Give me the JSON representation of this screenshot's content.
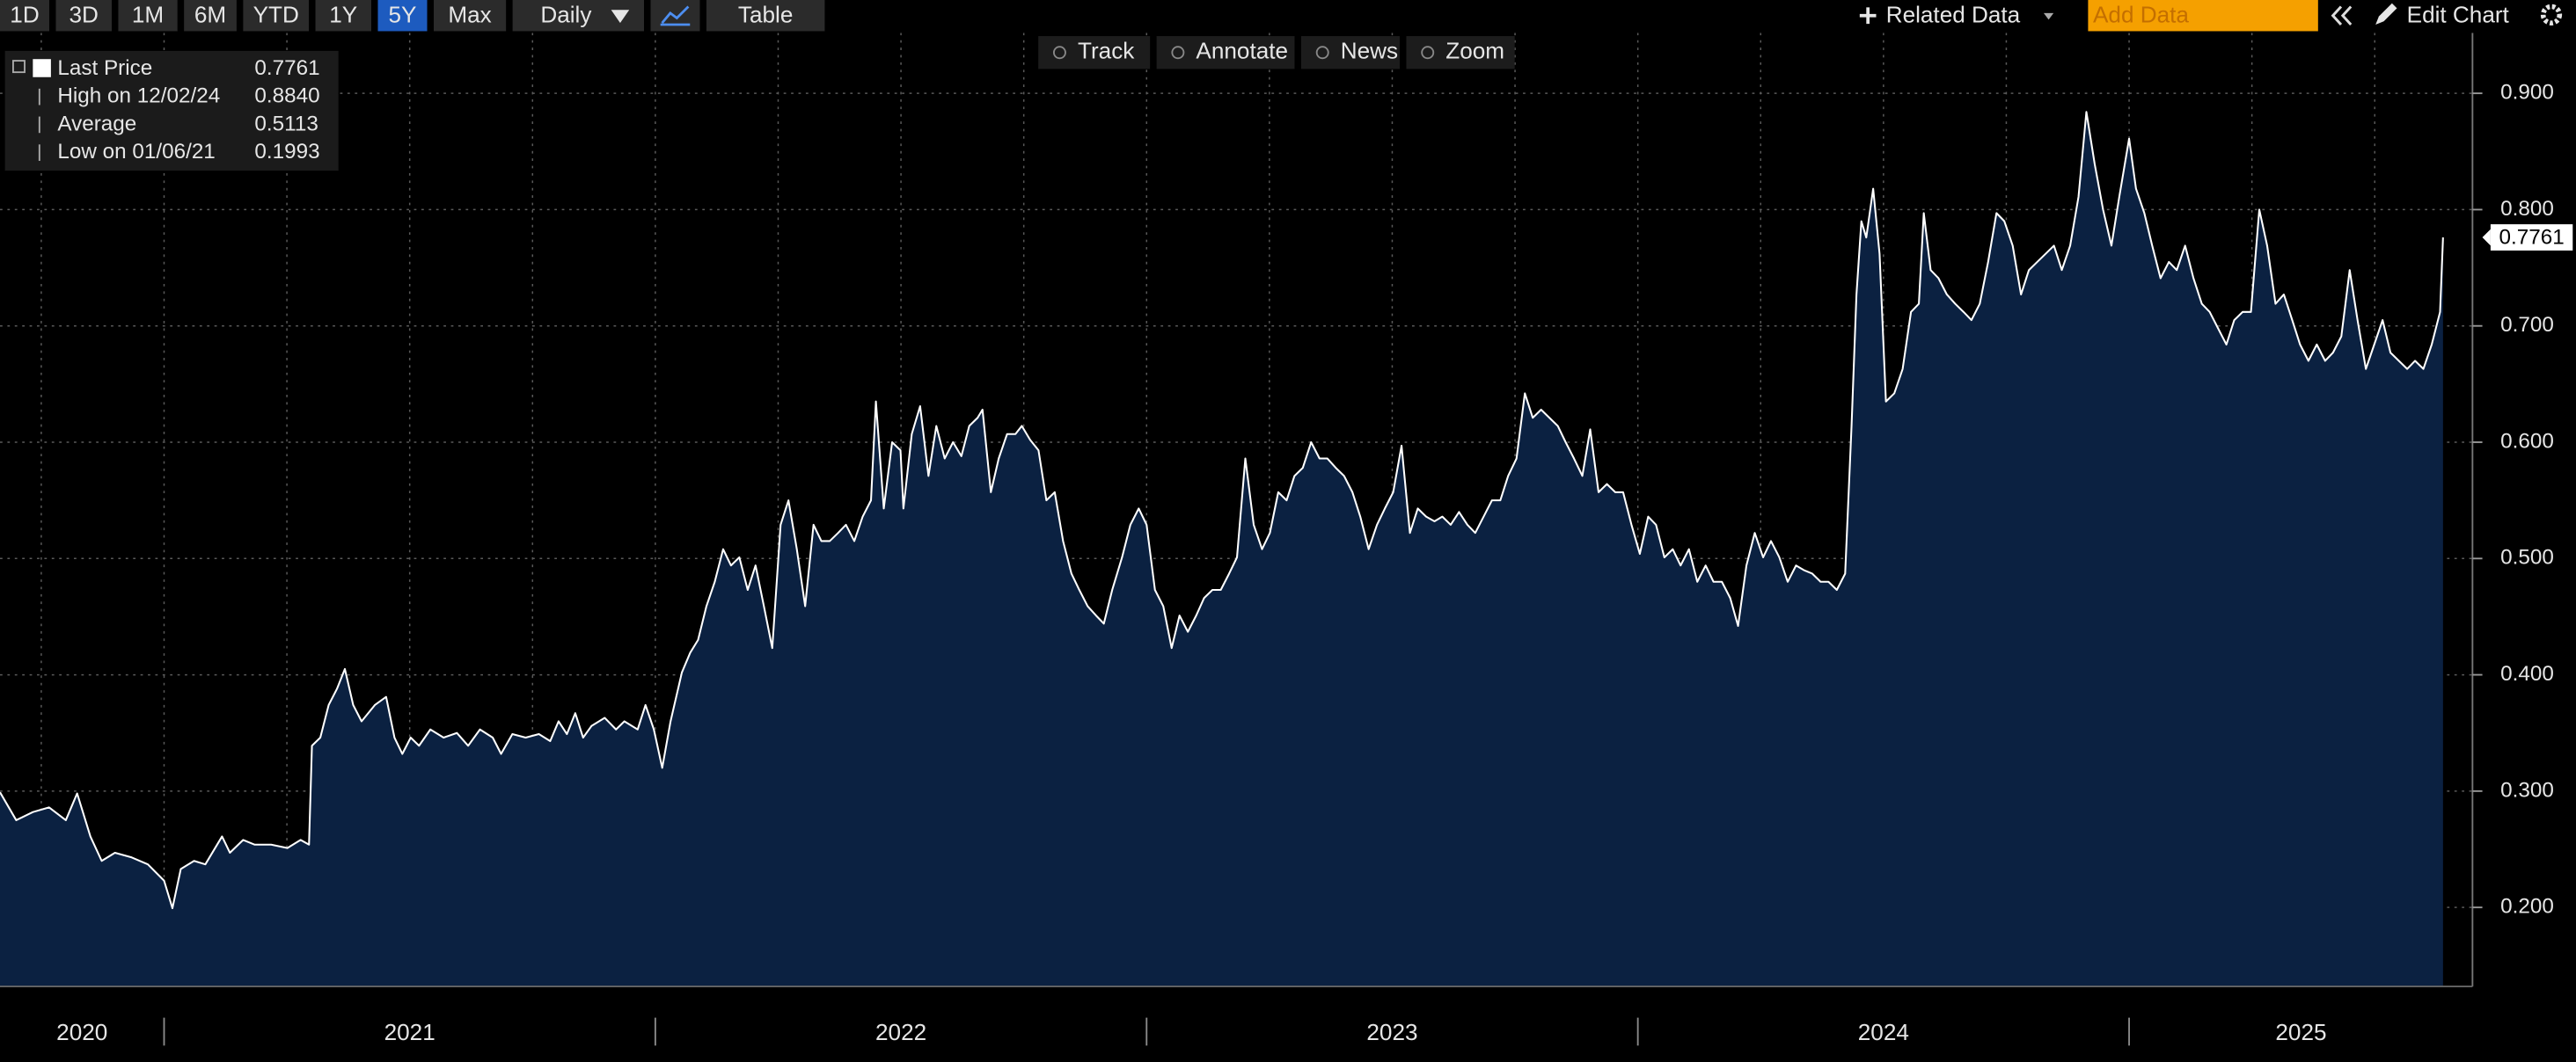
{
  "toolbar": {
    "periods": [
      "1D",
      "3D",
      "1M",
      "6M",
      "YTD",
      "1Y",
      "5Y",
      "Max"
    ],
    "active_period": 6,
    "frequency": "Daily",
    "table": "Table",
    "related": "Related Data",
    "add_data_placeholder": "Add Data",
    "edit": "Edit Chart",
    "tools": [
      "Track",
      "Annotate",
      "News",
      "Zoom"
    ]
  },
  "chart_data": {
    "type": "area",
    "stats": [
      {
        "label": "Last Price",
        "value": "0.7761"
      },
      {
        "label": "High on 12/02/24",
        "value": "0.8840"
      },
      {
        "label": "Average",
        "value": "0.5113"
      },
      {
        "label": "Low on 01/06/21",
        "value": "0.1993"
      }
    ],
    "x": [
      2020.666,
      2020.699,
      2020.733,
      2020.766,
      2020.8,
      2020.823,
      2020.85,
      2020.873,
      2020.9,
      2020.934,
      2020.967,
      2021.0,
      2021.017,
      2021.034,
      2021.061,
      2021.084,
      2021.118,
      2021.134,
      2021.161,
      2021.184,
      2021.218,
      2021.251,
      2021.278,
      2021.295,
      2021.301,
      2021.318,
      2021.335,
      2021.352,
      2021.368,
      2021.385,
      2021.402,
      2021.429,
      2021.452,
      2021.469,
      2021.485,
      2021.502,
      2021.519,
      2021.542,
      2021.569,
      2021.596,
      2021.619,
      2021.643,
      2021.669,
      2021.686,
      2021.709,
      2021.736,
      2021.763,
      2021.786,
      2021.803,
      2021.82,
      2021.837,
      2021.853,
      2021.87,
      2021.897,
      2021.92,
      2021.937,
      2021.964,
      2021.98,
      2021.997,
      2022.014,
      2022.031,
      2022.054,
      2022.071,
      2022.087,
      2022.104,
      2022.121,
      2022.138,
      2022.154,
      2022.171,
      2022.188,
      2022.204,
      2022.221,
      2022.238,
      2022.255,
      2022.271,
      2022.288,
      2022.305,
      2022.322,
      2022.338,
      2022.355,
      2022.372,
      2022.388,
      2022.405,
      2022.422,
      2022.439,
      2022.449,
      2022.465,
      2022.482,
      2022.499,
      2022.505,
      2022.522,
      2022.539,
      2022.556,
      2022.572,
      2022.589,
      2022.606,
      2022.623,
      2022.639,
      2022.656,
      2022.666,
      2022.683,
      2022.699,
      2022.716,
      2022.733,
      2022.746,
      2022.763,
      2022.78,
      2022.796,
      2022.813,
      2022.83,
      2022.847,
      2022.863,
      2022.88,
      2022.897,
      2022.913,
      2022.93,
      2022.95,
      2022.967,
      2022.984,
      2023.0,
      2023.017,
      2023.034,
      2023.051,
      2023.067,
      2023.084,
      2023.101,
      2023.117,
      2023.134,
      2023.151,
      2023.168,
      2023.184,
      2023.201,
      2023.218,
      2023.235,
      2023.251,
      2023.268,
      2023.285,
      2023.301,
      2023.318,
      2023.335,
      2023.352,
      2023.368,
      2023.385,
      2023.402,
      2023.419,
      2023.435,
      2023.452,
      2023.469,
      2023.485,
      2023.502,
      2023.519,
      2023.536,
      2023.552,
      2023.569,
      2023.586,
      2023.602,
      2023.619,
      2023.636,
      2023.653,
      2023.669,
      2023.686,
      2023.703,
      2023.72,
      2023.736,
      2023.753,
      2023.77,
      2023.786,
      2023.803,
      2023.82,
      2023.837,
      2023.853,
      2023.87,
      2023.887,
      2023.903,
      2023.92,
      2023.937,
      2023.954,
      2023.97,
      2023.987,
      2024.004,
      2024.021,
      2024.037,
      2024.054,
      2024.071,
      2024.087,
      2024.104,
      2024.121,
      2024.138,
      2024.154,
      2024.171,
      2024.188,
      2024.204,
      2024.221,
      2024.238,
      2024.255,
      2024.271,
      2024.288,
      2024.305,
      2024.322,
      2024.338,
      2024.355,
      2024.372,
      2024.388,
      2024.405,
      2024.422,
      2024.435,
      2024.445,
      2024.455,
      2024.465,
      2024.479,
      2024.492,
      2024.505,
      2024.522,
      2024.539,
      2024.556,
      2024.572,
      2024.582,
      2024.596,
      2024.612,
      2024.629,
      2024.646,
      2024.663,
      2024.679,
      2024.696,
      2024.713,
      2024.73,
      2024.746,
      2024.763,
      2024.78,
      2024.796,
      2024.813,
      2024.83,
      2024.847,
      2024.863,
      2024.88,
      2024.897,
      2024.913,
      2024.93,
      2024.947,
      2024.964,
      2024.98,
      2025.0,
      2025.014,
      2025.031,
      2025.047,
      2025.064,
      2025.081,
      2025.097,
      2025.114,
      2025.131,
      2025.148,
      2025.164,
      2025.181,
      2025.198,
      2025.214,
      2025.231,
      2025.248,
      2025.265,
      2025.281,
      2025.298,
      2025.315,
      2025.332,
      2025.348,
      2025.365,
      2025.382,
      2025.399,
      2025.415,
      2025.432,
      2025.449,
      2025.465,
      2025.482,
      2025.499,
      2025.516,
      2025.532,
      2025.549,
      2025.566,
      2025.582,
      2025.599,
      2025.616,
      2025.633,
      2025.639
    ],
    "series": [
      {
        "color": "#ffffff",
        "fill": "#0b2141",
        "values": [
          0.299,
          0.275,
          0.282,
          0.286,
          0.275,
          0.298,
          0.261,
          0.24,
          0.247,
          0.243,
          0.237,
          0.223,
          0.1993,
          0.233,
          0.24,
          0.237,
          0.261,
          0.247,
          0.258,
          0.254,
          0.254,
          0.251,
          0.258,
          0.254,
          0.339,
          0.346,
          0.374,
          0.388,
          0.405,
          0.374,
          0.36,
          0.374,
          0.381,
          0.346,
          0.332,
          0.346,
          0.339,
          0.353,
          0.346,
          0.35,
          0.339,
          0.353,
          0.346,
          0.332,
          0.349,
          0.346,
          0.349,
          0.343,
          0.36,
          0.349,
          0.367,
          0.346,
          0.356,
          0.363,
          0.353,
          0.36,
          0.353,
          0.374,
          0.353,
          0.32,
          0.36,
          0.402,
          0.419,
          0.43,
          0.459,
          0.48,
          0.508,
          0.494,
          0.501,
          0.473,
          0.494,
          0.459,
          0.423,
          0.529,
          0.55,
          0.508,
          0.459,
          0.529,
          0.515,
          0.515,
          0.522,
          0.529,
          0.515,
          0.536,
          0.55,
          0.635,
          0.543,
          0.6,
          0.593,
          0.543,
          0.607,
          0.631,
          0.571,
          0.614,
          0.586,
          0.6,
          0.588,
          0.614,
          0.621,
          0.628,
          0.557,
          0.586,
          0.607,
          0.607,
          0.614,
          0.602,
          0.593,
          0.55,
          0.557,
          0.515,
          0.487,
          0.473,
          0.459,
          0.451,
          0.444,
          0.473,
          0.501,
          0.529,
          0.543,
          0.529,
          0.473,
          0.459,
          0.423,
          0.451,
          0.437,
          0.451,
          0.466,
          0.473,
          0.473,
          0.487,
          0.501,
          0.586,
          0.529,
          0.508,
          0.522,
          0.557,
          0.55,
          0.571,
          0.578,
          0.6,
          0.586,
          0.586,
          0.578,
          0.571,
          0.557,
          0.536,
          0.508,
          0.529,
          0.543,
          0.557,
          0.597,
          0.522,
          0.543,
          0.536,
          0.532,
          0.536,
          0.529,
          0.54,
          0.529,
          0.522,
          0.536,
          0.55,
          0.55,
          0.571,
          0.586,
          0.642,
          0.621,
          0.628,
          0.621,
          0.614,
          0.6,
          0.586,
          0.571,
          0.611,
          0.557,
          0.564,
          0.557,
          0.557,
          0.529,
          0.504,
          0.536,
          0.529,
          0.501,
          0.508,
          0.494,
          0.508,
          0.48,
          0.494,
          0.48,
          0.48,
          0.466,
          0.442,
          0.494,
          0.522,
          0.501,
          0.515,
          0.501,
          0.48,
          0.494,
          0.49,
          0.487,
          0.48,
          0.48,
          0.473,
          0.487,
          0.614,
          0.727,
          0.79,
          0.776,
          0.818,
          0.762,
          0.635,
          0.642,
          0.663,
          0.712,
          0.719,
          0.797,
          0.748,
          0.741,
          0.727,
          0.719,
          0.712,
          0.705,
          0.719,
          0.755,
          0.797,
          0.79,
          0.769,
          0.727,
          0.748,
          0.755,
          0.762,
          0.769,
          0.748,
          0.769,
          0.811,
          0.884,
          0.839,
          0.8,
          0.769,
          0.811,
          0.861,
          0.818,
          0.797,
          0.769,
          0.741,
          0.755,
          0.748,
          0.769,
          0.741,
          0.719,
          0.712,
          0.698,
          0.684,
          0.705,
          0.712,
          0.712,
          0.8,
          0.769,
          0.719,
          0.727,
          0.705,
          0.684,
          0.67,
          0.684,
          0.67,
          0.677,
          0.691,
          0.748,
          0.705,
          0.663,
          0.684,
          0.705,
          0.677,
          0.67,
          0.663,
          0.67,
          0.663,
          0.684,
          0.712,
          0.7761
        ]
      }
    ],
    "xlim": [
      2020.666,
      2025.699
    ],
    "xticks": [
      {
        "value": 2020.833,
        "label": "2020"
      },
      {
        "value": 2021.5,
        "label": "2021"
      },
      {
        "value": 2022.5,
        "label": "2022"
      },
      {
        "value": 2023.5,
        "label": "2023"
      },
      {
        "value": 2024.5,
        "label": "2024"
      },
      {
        "value": 2025.35,
        "label": "2025"
      }
    ],
    "xgrid": [
      2020.75,
      2021,
      2021.25,
      2021.5,
      2021.75,
      2022,
      2022.25,
      2022.5,
      2022.75,
      2023,
      2023.25,
      2023.5,
      2023.75,
      2024,
      2024.25,
      2024.5,
      2024.75,
      2025,
      2025.25,
      2025.5
    ],
    "ylim": [
      0.132,
      0.952
    ],
    "yticks": [
      {
        "value": 0.2,
        "label": "0.200"
      },
      {
        "value": 0.3,
        "label": "0.300"
      },
      {
        "value": 0.4,
        "label": "0.400"
      },
      {
        "value": 0.5,
        "label": "0.500"
      },
      {
        "value": 0.6,
        "label": "0.600"
      },
      {
        "value": 0.7,
        "label": "0.700"
      },
      {
        "value": 0.8,
        "label": "0.800"
      },
      {
        "value": 0.9,
        "label": "0.900"
      }
    ],
    "y_axis_side": "right",
    "grid": true
  }
}
